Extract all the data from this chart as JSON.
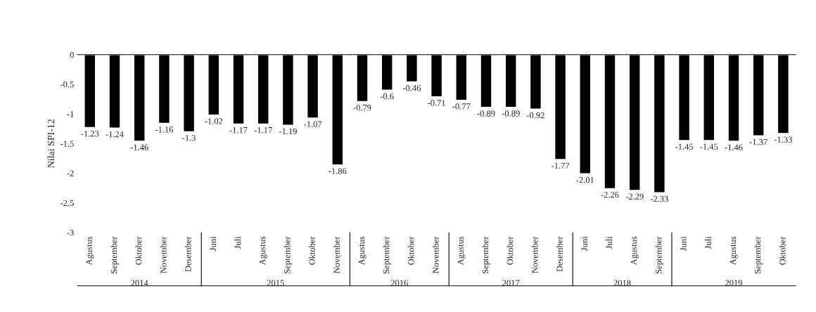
{
  "chart_data": [
    {
      "type": "bar",
      "ylabel": "Nilai SPI-12",
      "xlabel": "2014",
      "categories": [
        "Agustus",
        "September",
        "Oktober",
        "November",
        "Desember"
      ],
      "values": [
        -1.23,
        -1.24,
        -1.46,
        -1.16,
        -1.3
      ],
      "color": "#000000",
      "ylim": [
        -3,
        0
      ],
      "yticks": [
        0,
        -0.5,
        -1,
        -1.5,
        -2,
        -2.5,
        -3
      ],
      "data_labels": true
    },
    {
      "type": "bar",
      "xlabel": "2015",
      "categories": [
        "Juni",
        "Juli",
        "Agustus",
        "September",
        "Oktober",
        "November"
      ],
      "values": [
        -1.02,
        -1.17,
        -1.17,
        -1.19,
        -1.07,
        -1.86
      ],
      "color": "#000000",
      "ylim": [
        -3,
        0
      ],
      "data_labels": true,
      "tick_labels": "x"
    },
    {
      "type": "bar",
      "xlabel": "2016",
      "categories": [
        "Agustus",
        "September",
        "Oktober",
        "November"
      ],
      "values": [
        -0.79,
        -0.6,
        -0.46,
        -0.71
      ],
      "color": "#000000",
      "ylim": [
        -3,
        0
      ],
      "data_labels": true,
      "tick_labels": "x"
    },
    {
      "type": "bar",
      "xlabel": "2017",
      "categories": [
        "Agustus",
        "September",
        "Oktober",
        "November",
        "Desember"
      ],
      "values": [
        -0.77,
        -0.89,
        -0.89,
        -0.92,
        -1.77
      ],
      "color": "#000000",
      "ylim": [
        -3,
        0
      ],
      "data_labels": true,
      "tick_labels": "x"
    },
    {
      "type": "bar",
      "xlabel": "2018",
      "categories": [
        "Juni",
        "Juli",
        "Agustus",
        "September"
      ],
      "values": [
        -2.01,
        -2.26,
        -2.29,
        -2.33
      ],
      "color": "#000000",
      "ylim": [
        -3,
        0
      ],
      "data_labels": true,
      "tick_labels": "x"
    },
    {
      "type": "bar",
      "xlabel": "2019",
      "categories": [
        "Juni",
        "Juli",
        "Agustus",
        "September",
        "Oktober"
      ],
      "values": [
        -1.45,
        -1.45,
        -1.46,
        -1.37,
        -1.33
      ],
      "color": "#000000",
      "ylim": [
        -3,
        0
      ],
      "data_labels": true,
      "tick_labels": "x"
    }
  ]
}
